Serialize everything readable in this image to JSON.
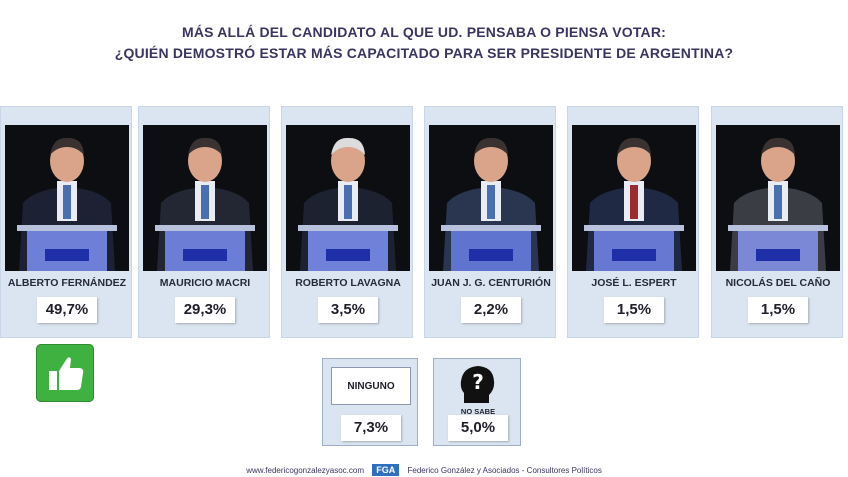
{
  "title_line1": "MÁS ALLÁ DEL CANDIDATO AL QUE UD. PENSABA O PIENSA VOTAR:",
  "title_line2": "¿QUIÉN DEMOSTRÓ ESTAR MÁS CAPACITADO PARA SER PRESIDENTE DE ARGENTINA?",
  "chart_data": {
    "type": "bar",
    "categories": [
      "ALBERTO FERNÁNDEZ",
      "MAURICIO MACRI",
      "ROBERTO LAVAGNA",
      "JUAN J. G. CENTURIÓN",
      "JOSÉ L. ESPERT",
      "NICOLÁS DEL CAÑO",
      "NINGUNO",
      "NO SABE"
    ],
    "values": [
      49.7,
      29.3,
      3.5,
      2.2,
      1.5,
      1.5,
      7.3,
      5.0
    ],
    "labels": [
      "49,7%",
      "29,3%",
      "3,5%",
      "2,2%",
      "1,5%",
      "1,5%",
      "7,3%",
      "5,0%"
    ],
    "title": "MÁS ALLÁ DEL CANDIDATO AL QUE UD. PENSABA O PIENSA VOTAR: ¿QUIÉN DEMOSTRÓ ESTAR MÁS CAPACITADO PARA SER PRESIDENTE DE ARGENTINA?"
  },
  "candidates": [
    {
      "name": "ALBERTO FERNÁNDEZ",
      "pct": "49,7%",
      "photo_icon": "candidate-photo"
    },
    {
      "name": "MAURICIO MACRI",
      "pct": "29,3%",
      "photo_icon": "candidate-photo"
    },
    {
      "name": "ROBERTO LAVAGNA",
      "pct": "3,5%",
      "photo_icon": "candidate-photo"
    },
    {
      "name": "JUAN J. G. CENTURIÓN",
      "pct": "2,2%",
      "photo_icon": "candidate-photo"
    },
    {
      "name": "JOSÉ L. ESPERT",
      "pct": "1,5%",
      "photo_icon": "candidate-photo"
    },
    {
      "name": "NICOLÁS DEL CAÑO",
      "pct": "1,5%",
      "photo_icon": "candidate-photo"
    }
  ],
  "ninguno": {
    "label": "NINGUNO",
    "pct": "7,3%"
  },
  "no_sabe": {
    "label": "NO SABE",
    "pct": "5,0%",
    "icon": "question-head-icon"
  },
  "winner_icon": "thumbs-up-icon",
  "footer": {
    "url": "www.federicogonzalezyasoc.com",
    "logo": "FGA",
    "company": "Federico González y Asociados - Consultores Políticos"
  },
  "colors": {
    "title": "#3a3560",
    "card_bg": "#dbe5f1",
    "thumb_green": "#3fb140",
    "logo_blue": "#2f6fc2"
  }
}
